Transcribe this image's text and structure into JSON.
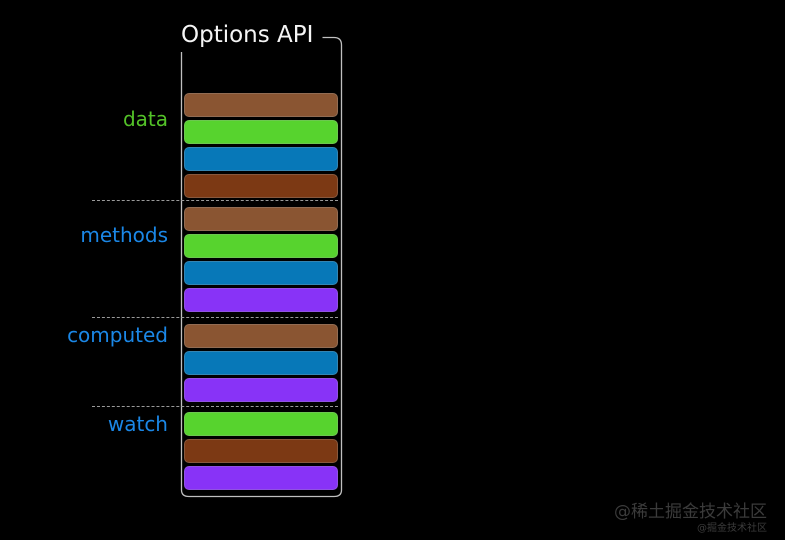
{
  "title": "Options API",
  "colors": {
    "brown": "#8a5532",
    "green": "#57d32e",
    "blue": "#0778b8",
    "darkred": "#7c3914",
    "purple": "#8833f7",
    "label_green": "#53c228",
    "label_blue": "#1b87e6",
    "outline": "#c0c0c0",
    "dashed_divider": "#9a9a9a",
    "background": "#000000",
    "title_text": "#f5f5f5",
    "watermark_text": "#3b3b3b"
  },
  "sections": [
    {
      "label": "data",
      "label_color": "label_green",
      "bars": [
        "brown",
        "green",
        "blue",
        "darkred"
      ]
    },
    {
      "label": "methods",
      "label_color": "label_blue",
      "bars": [
        "brown",
        "green",
        "blue",
        "purple"
      ]
    },
    {
      "label": "computed",
      "label_color": "label_blue",
      "bars": [
        "brown",
        "blue",
        "purple"
      ]
    },
    {
      "label": "watch",
      "label_color": "label_blue",
      "bars": [
        "green",
        "darkred",
        "purple"
      ]
    }
  ],
  "watermark": {
    "line1": "@稀土掘金技术社区",
    "line2": "@掘金技术社区"
  }
}
